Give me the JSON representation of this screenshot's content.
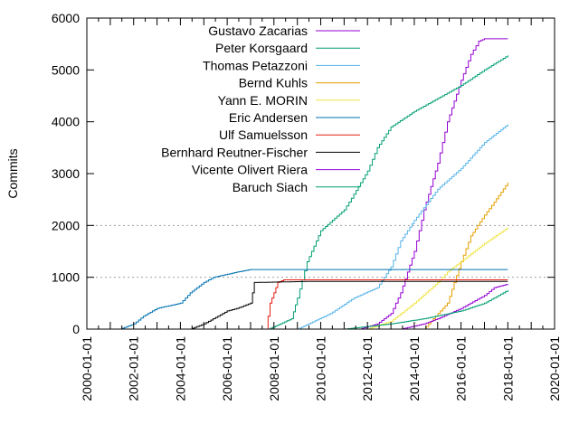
{
  "chart_data": {
    "type": "line",
    "ylabel": "Commits",
    "xlabel": "",
    "ylim": [
      0,
      6000
    ],
    "xlim": [
      "2000-01-01",
      "2020-01-01"
    ],
    "yticks": [
      0,
      1000,
      2000,
      3000,
      4000,
      5000,
      6000
    ],
    "xticks": [
      "2000-01-01",
      "2002-01-01",
      "2004-01-01",
      "2006-01-01",
      "2008-01-01",
      "2010-01-01",
      "2012-01-01",
      "2014-01-01",
      "2016-01-01",
      "2018-01-01",
      "2020-01-01"
    ],
    "grid": "horizontal dotted at 1000 and 2000",
    "legend_position": "top-left",
    "series": [
      {
        "name": "Gustavo Zacarias",
        "color": "#9400d3",
        "points": [
          [
            "2011-09-01",
            0
          ],
          [
            "2012-06-01",
            100
          ],
          [
            "2013-01-01",
            300
          ],
          [
            "2013-06-01",
            700
          ],
          [
            "2014-01-01",
            1500
          ],
          [
            "2014-06-01",
            2300
          ],
          [
            "2015-01-01",
            3200
          ],
          [
            "2015-06-01",
            4000
          ],
          [
            "2016-01-01",
            4800
          ],
          [
            "2016-06-01",
            5300
          ],
          [
            "2016-10-01",
            5550
          ],
          [
            "2017-01-01",
            5600
          ],
          [
            "2018-01-01",
            5600
          ]
        ]
      },
      {
        "name": "Peter Korsgaard",
        "color": "#009e73",
        "points": [
          [
            "2007-10-01",
            0
          ],
          [
            "2008-03-01",
            80
          ],
          [
            "2008-10-01",
            200
          ],
          [
            "2009-01-01",
            600
          ],
          [
            "2009-06-01",
            1300
          ],
          [
            "2010-01-01",
            1900
          ],
          [
            "2011-01-01",
            2300
          ],
          [
            "2011-06-01",
            2600
          ],
          [
            "2012-01-01",
            3050
          ],
          [
            "2012-06-01",
            3500
          ],
          [
            "2013-01-01",
            3900
          ],
          [
            "2014-01-01",
            4200
          ],
          [
            "2015-01-01",
            4450
          ],
          [
            "2016-01-01",
            4700
          ],
          [
            "2017-01-01",
            5000
          ],
          [
            "2018-01-01",
            5280
          ]
        ]
      },
      {
        "name": "Thomas Petazzoni",
        "color": "#56b4e9",
        "points": [
          [
            "2009-01-01",
            0
          ],
          [
            "2010-06-01",
            300
          ],
          [
            "2011-06-01",
            600
          ],
          [
            "2012-06-01",
            800
          ],
          [
            "2013-01-01",
            1200
          ],
          [
            "2013-06-01",
            1700
          ],
          [
            "2014-01-01",
            2100
          ],
          [
            "2015-01-01",
            2700
          ],
          [
            "2016-01-01",
            3100
          ],
          [
            "2017-01-01",
            3600
          ],
          [
            "2018-01-01",
            3950
          ]
        ]
      },
      {
        "name": "Bernd Kuhls",
        "color": "#e69f00",
        "points": [
          [
            "2014-06-01",
            0
          ],
          [
            "2015-06-01",
            500
          ],
          [
            "2016-01-01",
            1300
          ],
          [
            "2016-06-01",
            1800
          ],
          [
            "2017-01-01",
            2200
          ],
          [
            "2017-06-01",
            2450
          ],
          [
            "2018-01-01",
            2830
          ]
        ]
      },
      {
        "name": "Yann E. MORIN",
        "color": "#f0e442",
        "points": [
          [
            "2012-01-01",
            0
          ],
          [
            "2013-01-01",
            150
          ],
          [
            "2014-01-01",
            500
          ],
          [
            "2015-01-01",
            900
          ],
          [
            "2015-06-01",
            1100
          ],
          [
            "2016-06-01",
            1450
          ],
          [
            "2017-01-01",
            1650
          ],
          [
            "2018-01-01",
            1960
          ]
        ]
      },
      {
        "name": "Eric Andersen",
        "color": "#0072b2",
        "points": [
          [
            "2001-06-01",
            0
          ],
          [
            "2002-01-01",
            100
          ],
          [
            "2002-06-01",
            250
          ],
          [
            "2003-01-01",
            400
          ],
          [
            "2004-01-01",
            500
          ],
          [
            "2004-06-01",
            700
          ],
          [
            "2005-01-01",
            900
          ],
          [
            "2005-06-01",
            1000
          ],
          [
            "2006-06-01",
            1100
          ],
          [
            "2007-01-01",
            1150
          ],
          [
            "2018-01-01",
            1150
          ]
        ]
      },
      {
        "name": "Ulf Samuelsson",
        "color": "#e51e10",
        "points": [
          [
            "2007-09-01",
            0
          ],
          [
            "2007-11-01",
            500
          ],
          [
            "2008-01-01",
            700
          ],
          [
            "2008-03-01",
            900
          ],
          [
            "2008-06-01",
            950
          ],
          [
            "2018-01-01",
            950
          ]
        ]
      },
      {
        "name": "Bernhard Reutner-Fischer",
        "color": "#000000",
        "points": [
          [
            "2004-06-01",
            0
          ],
          [
            "2005-01-01",
            100
          ],
          [
            "2006-01-01",
            350
          ],
          [
            "2006-06-01",
            400
          ],
          [
            "2007-01-01",
            500
          ],
          [
            "2007-03-01",
            900
          ],
          [
            "2009-06-01",
            920
          ],
          [
            "2018-01-01",
            920
          ]
        ]
      },
      {
        "name": "Vicente Olivert Riera",
        "color": "#9400d3",
        "points": [
          [
            "2013-06-01",
            0
          ],
          [
            "2014-06-01",
            100
          ],
          [
            "2015-01-01",
            200
          ],
          [
            "2016-01-01",
            400
          ],
          [
            "2017-01-01",
            650
          ],
          [
            "2017-06-01",
            800
          ],
          [
            "2018-01-01",
            870
          ]
        ]
      },
      {
        "name": "Baruch Siach",
        "color": "#009e73",
        "points": [
          [
            "2011-01-01",
            0
          ],
          [
            "2013-01-01",
            100
          ],
          [
            "2014-06-01",
            200
          ],
          [
            "2016-01-01",
            350
          ],
          [
            "2017-01-01",
            500
          ],
          [
            "2018-01-01",
            750
          ]
        ]
      }
    ]
  }
}
